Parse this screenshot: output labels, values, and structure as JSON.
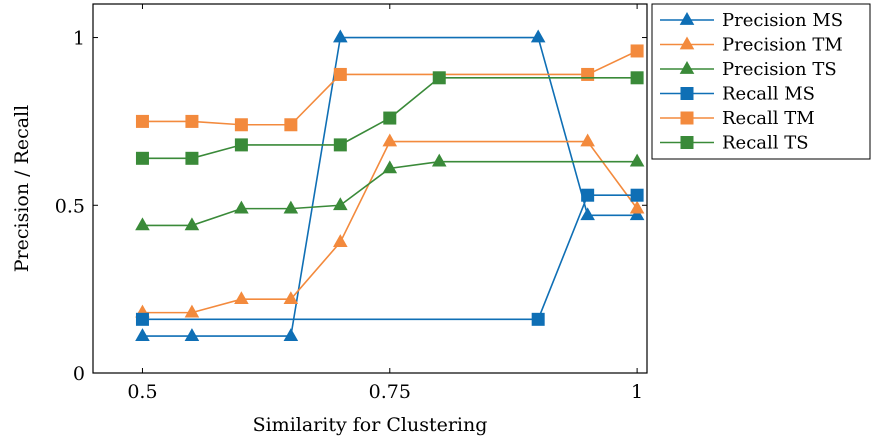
{
  "chart_data": {
    "type": "line",
    "xlabel": "Similarity for Clustering",
    "ylabel": "Precision / Recall",
    "xlim": [
      0.45,
      1.01
    ],
    "ylim": [
      0,
      1.1
    ],
    "xticks": [
      0.5,
      0.75,
      1
    ],
    "xtick_labels": [
      "0.5",
      "0.75",
      "1"
    ],
    "yticks": [
      0,
      0.5,
      1
    ],
    "ytick_labels": [
      "0",
      "0.5",
      "1"
    ],
    "grid": false,
    "legend_position": "outside-top-right",
    "colors": {
      "blue": "#0f6fb5",
      "orange": "#f38a3d",
      "green": "#3a8a39"
    },
    "series": [
      {
        "name": "Precision MS",
        "color": "#0f6fb5",
        "marker": "triangle",
        "x": [
          0.5,
          0.55,
          0.65,
          0.7,
          0.9,
          0.95,
          1.0
        ],
        "y": [
          0.11,
          0.11,
          0.11,
          1.0,
          1.0,
          0.47,
          0.47
        ]
      },
      {
        "name": "Precision TM",
        "color": "#f38a3d",
        "marker": "triangle",
        "x": [
          0.5,
          0.55,
          0.6,
          0.65,
          0.7,
          0.75,
          0.95,
          1.0
        ],
        "y": [
          0.18,
          0.18,
          0.22,
          0.22,
          0.39,
          0.69,
          0.69,
          0.49
        ]
      },
      {
        "name": "Precision TS",
        "color": "#3a8a39",
        "marker": "triangle",
        "x": [
          0.5,
          0.55,
          0.6,
          0.65,
          0.7,
          0.75,
          0.8,
          1.0
        ],
        "y": [
          0.44,
          0.44,
          0.49,
          0.49,
          0.5,
          0.61,
          0.63,
          0.63
        ]
      },
      {
        "name": "Recall MS",
        "color": "#0f6fb5",
        "marker": "square",
        "x": [
          0.5,
          0.9,
          0.95,
          1.0
        ],
        "y": [
          0.16,
          0.16,
          0.53,
          0.53
        ]
      },
      {
        "name": "Recall TM",
        "color": "#f38a3d",
        "marker": "square",
        "x": [
          0.5,
          0.55,
          0.6,
          0.65,
          0.7,
          0.95,
          1.0
        ],
        "y": [
          0.75,
          0.75,
          0.74,
          0.74,
          0.89,
          0.89,
          0.96
        ]
      },
      {
        "name": "Recall TS",
        "color": "#3a8a39",
        "marker": "square",
        "x": [
          0.5,
          0.55,
          0.6,
          0.7,
          0.75,
          0.8,
          1.0
        ],
        "y": [
          0.64,
          0.64,
          0.68,
          0.68,
          0.76,
          0.88,
          0.88
        ]
      }
    ]
  }
}
